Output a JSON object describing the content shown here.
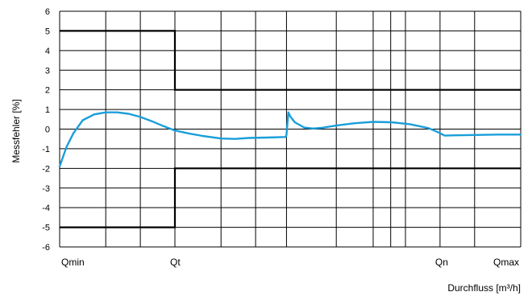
{
  "chart_data": {
    "type": "line",
    "title": "",
    "ylabel": "Messfehler [%]",
    "xlabel": "Durchfluss [m³/h]",
    "ylim": [
      -6,
      6
    ],
    "yticks": [
      "6",
      "5",
      "4",
      "3",
      "2",
      "1",
      "0",
      "-1",
      "-2",
      "-3",
      "-4",
      "-5",
      "-6"
    ],
    "xlim": [
      0,
      100
    ],
    "x_scale": "categorical flow range (unlabelled positions)",
    "x_tick_labels": [
      {
        "label": "Qmin",
        "x": 0
      },
      {
        "label": "Qt",
        "x": 25
      },
      {
        "label": "Qn",
        "x": 82.5
      },
      {
        "label": "Qmax",
        "x": 100
      }
    ],
    "grid": true,
    "colors": {
      "error_curve": "#1a9ed9",
      "limits": "#000000",
      "grid": "#000000"
    },
    "series": [
      {
        "role": "measured error curve",
        "x": [
          0,
          1.5,
          3,
          5,
          7.5,
          10,
          12.5,
          15,
          17.5,
          20,
          22.5,
          25,
          28,
          31,
          35,
          38,
          41,
          45,
          49,
          49.2,
          49.4,
          49.6,
          50,
          51,
          53,
          55,
          57,
          60,
          64,
          68,
          72,
          76,
          80,
          82,
          83.5,
          85,
          90,
          95,
          100
        ],
        "y": [
          -1.9,
          -0.9,
          -0.2,
          0.45,
          0.75,
          0.85,
          0.85,
          0.78,
          0.62,
          0.4,
          0.15,
          -0.07,
          -0.22,
          -0.35,
          -0.48,
          -0.5,
          -0.45,
          -0.43,
          -0.4,
          -0.3,
          0.3,
          0.85,
          0.65,
          0.35,
          0.08,
          0.03,
          0.07,
          0.18,
          0.3,
          0.37,
          0.35,
          0.25,
          0.05,
          -0.15,
          -0.33,
          -0.32,
          -0.3,
          -0.28,
          -0.28
        ]
      },
      {
        "role": "upper limit (MPE)",
        "x": [
          0,
          25,
          25,
          100
        ],
        "y": [
          5,
          5,
          2,
          2
        ]
      },
      {
        "role": "lower limit (MPE)",
        "x": [
          0,
          25,
          25,
          100
        ],
        "y": [
          -5,
          -5,
          -2,
          -2
        ]
      }
    ]
  }
}
